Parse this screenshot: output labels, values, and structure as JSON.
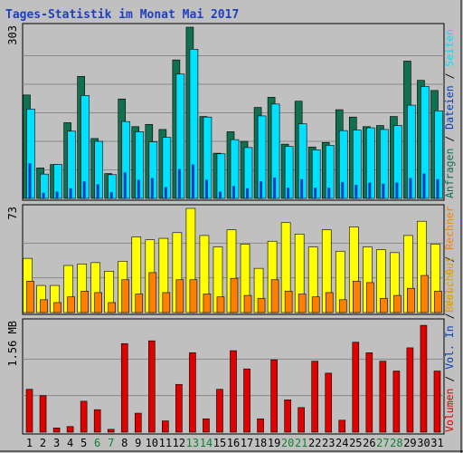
{
  "chart_data": {
    "type": "bar",
    "title": "Tages-Statistik im Monat Mai 2017",
    "categories": [
      "1",
      "2",
      "3",
      "4",
      "5",
      "6",
      "7",
      "8",
      "9",
      "10",
      "11",
      "12",
      "13",
      "14",
      "15",
      "16",
      "17",
      "18",
      "19",
      "20",
      "21",
      "22",
      "23",
      "24",
      "25",
      "26",
      "27",
      "28",
      "29",
      "30",
      "31"
    ],
    "weekend_days": [
      "6",
      "7",
      "13",
      "14",
      "20",
      "21",
      "27",
      "28"
    ],
    "colors": {
      "background": "#c0c0c0",
      "plot_background": "#c0c0c0",
      "frame": "#000000",
      "title": "#1f3fbf",
      "anfragen": "#107050",
      "dateien": "#0040c0",
      "seiten": "#00e0ff",
      "besuche": "#ffff00",
      "rechner": "#ff8000",
      "vol_out": "#e0a000",
      "vol_in": "#0040c0",
      "volumen": "#e00000",
      "weekday_label": "#000000",
      "weekend_label": "#108030"
    },
    "panels": [
      {
        "id": "hits",
        "max_label": "303",
        "ylim": [
          0,
          303
        ],
        "legend": [
          {
            "text": "Anfragen",
            "color": "#107050"
          },
          {
            "text": "Dateien",
            "color": "#0040c0"
          },
          {
            "text": "Seiten",
            "color": "#00e0ff"
          }
        ],
        "series": [
          {
            "name": "Anfragen",
            "values": [
              183,
              54,
              60,
              134,
              216,
              106,
              44,
              176,
              127,
              131,
              122,
              245,
              303,
              145,
              80,
              118,
              101,
              161,
              179,
              96,
              172,
              91,
              99,
              157,
              144,
              127,
              129,
              145,
              243,
              209,
              191
            ]
          },
          {
            "name": "Seiten",
            "values": [
              158,
              43,
              60,
              119,
              182,
              101,
              42,
              136,
              118,
              100,
              108,
              220,
              264,
              144,
              79,
              104,
              90,
              146,
              167,
              92,
              132,
              86,
              94,
              120,
              121,
              125,
              122,
              129,
              165,
              198,
              155
            ]
          },
          {
            "name": "Dateien",
            "values": [
              62,
              10,
              12,
              18,
              30,
              25,
              11,
              46,
              33,
              36,
              20,
              52,
              60,
              33,
              12,
              22,
              18,
              30,
              37,
              19,
              34,
              19,
              19,
              29,
              24,
              28,
              26,
              28,
              36,
              44,
              34
            ]
          }
        ]
      },
      {
        "id": "visits",
        "max_label": "73",
        "ylim": [
          0,
          73
        ],
        "legend": [
          {
            "text": "Besuche",
            "color": "#e0a000"
          },
          {
            "text": "Rechner",
            "color": "#ff8000"
          }
        ],
        "series": [
          {
            "name": "Besuche",
            "values": [
              38,
              19,
              19,
              33,
              34,
              35,
              29,
              36,
              53,
              51,
              52,
              56,
              73,
              54,
              46,
              58,
              48,
              31,
              50,
              63,
              55,
              46,
              58,
              43,
              60,
              46,
              44,
              42,
              54,
              64,
              48
            ]
          },
          {
            "name": "Rechner",
            "values": [
              22,
              9,
              7,
              11,
              15,
              14,
              7,
              23,
              13,
              28,
              14,
              23,
              23,
              13,
              11,
              24,
              12,
              10,
              23,
              15,
              13,
              11,
              14,
              9,
              22,
              21,
              10,
              12,
              17,
              26,
              15
            ]
          }
        ]
      },
      {
        "id": "volume",
        "max_label": "1.56 MB",
        "ylim": [
          0,
          1.56
        ],
        "legend": [
          {
            "text": "Volumen",
            "color": "#e00000"
          },
          {
            "text": "Vol. In",
            "color": "#0040c0"
          },
          {
            "text": "Vol. Out",
            "color": "#e0a000"
          }
        ],
        "series": [
          {
            "name": "Volumen",
            "values": [
              0.61,
              0.52,
              0.06,
              0.08,
              0.44,
              0.32,
              0.04,
              1.26,
              0.27,
              1.3,
              0.16,
              0.68,
              1.13,
              0.19,
              0.61,
              1.16,
              0.9,
              0.19,
              1.03,
              0.46,
              0.35,
              1.01,
              0.84,
              0.17,
              1.28,
              1.13,
              1.01,
              0.87,
              1.2,
              1.52,
              0.87
            ]
          }
        ]
      }
    ]
  }
}
